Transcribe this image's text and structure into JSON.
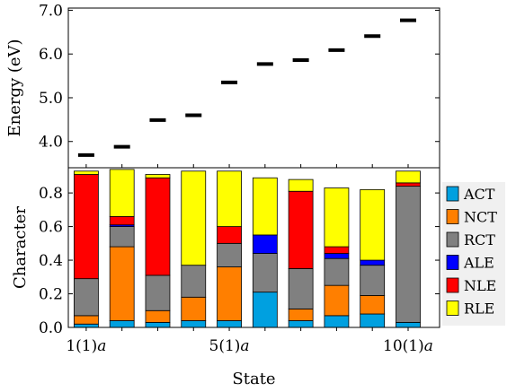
{
  "chart_data": [
    {
      "type": "scatter",
      "marker": "horizontal-bar",
      "ylabel": "Energy (eV)",
      "ylim": [
        3.4,
        7.05
      ],
      "yticks": [
        "4.0",
        "5.0",
        "6.0",
        "7.0"
      ],
      "ytick_values": [
        4.0,
        5.0,
        6.0,
        7.0
      ],
      "x": [
        1,
        2,
        3,
        4,
        5,
        6,
        7,
        8,
        9,
        10
      ],
      "values": [
        3.69,
        3.88,
        4.49,
        4.6,
        5.35,
        5.77,
        5.86,
        6.09,
        6.41,
        6.77
      ],
      "color": "#000000"
    },
    {
      "type": "bar",
      "stacked": true,
      "xlabel": "State",
      "ylabel": "Character",
      "ylim": [
        0.0,
        0.95
      ],
      "yticks": [
        "0.0",
        "0.2",
        "0.4",
        "0.6",
        "0.8"
      ],
      "ytick_values": [
        0.0,
        0.2,
        0.4,
        0.6,
        0.8
      ],
      "x": [
        1,
        2,
        3,
        4,
        5,
        6,
        7,
        8,
        9,
        10
      ],
      "xtick_labels": [
        {
          "x": 1,
          "main": "1(1)",
          "italic": "a"
        },
        {
          "x": 5,
          "main": "5(1)",
          "italic": "a"
        },
        {
          "x": 10,
          "main": "10(1)",
          "italic": "a"
        }
      ],
      "legend_position": "right",
      "series": [
        {
          "name": "ACT",
          "color": "#00a0e0",
          "values": [
            0.02,
            0.04,
            0.03,
            0.04,
            0.04,
            0.21,
            0.04,
            0.07,
            0.08,
            0.03
          ]
        },
        {
          "name": "NCT",
          "color": "#ff7f00",
          "values": [
            0.05,
            0.44,
            0.07,
            0.14,
            0.32,
            0.0,
            0.07,
            0.18,
            0.11,
            0.0
          ]
        },
        {
          "name": "RCT",
          "color": "#808080",
          "values": [
            0.22,
            0.12,
            0.21,
            0.19,
            0.14,
            0.23,
            0.24,
            0.16,
            0.18,
            0.81
          ]
        },
        {
          "name": "ALE",
          "color": "#0000ff",
          "values": [
            0.0,
            0.01,
            0.0,
            0.0,
            0.0,
            0.11,
            0.0,
            0.03,
            0.03,
            0.0
          ]
        },
        {
          "name": "NLE",
          "color": "#ff0000",
          "values": [
            0.62,
            0.05,
            0.58,
            0.0,
            0.1,
            0.0,
            0.46,
            0.04,
            0.0,
            0.02
          ]
        },
        {
          "name": "RLE",
          "color": "#ffff00",
          "values": [
            0.02,
            0.28,
            0.02,
            0.56,
            0.33,
            0.34,
            0.07,
            0.35,
            0.42,
            0.07
          ]
        }
      ]
    }
  ]
}
